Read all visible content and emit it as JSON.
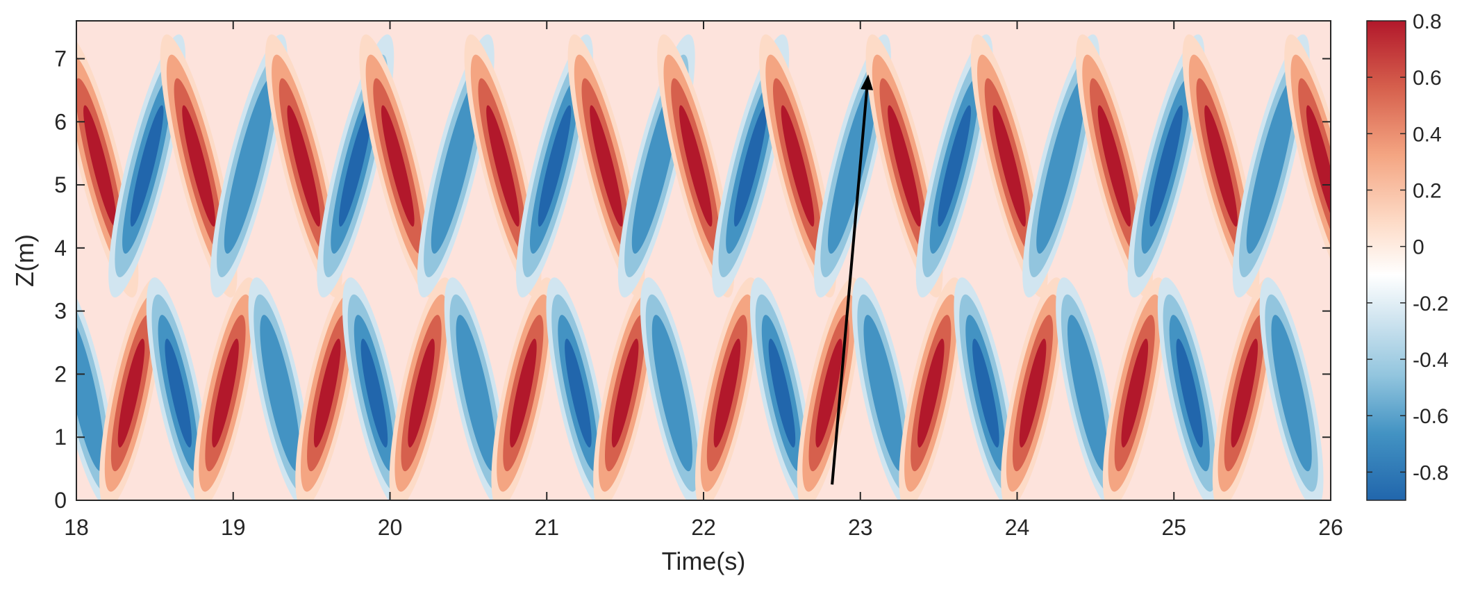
{
  "chart_data": {
    "type": "heatmap",
    "title": "",
    "xlabel": "Time(s)",
    "ylabel": "Z(m)",
    "xlim": [
      18,
      26
    ],
    "ylim": [
      0,
      7.6
    ],
    "x_ticks": [
      18,
      19,
      20,
      21,
      22,
      23,
      24,
      25,
      26
    ],
    "x_tick_labels": [
      "18",
      "19",
      "20",
      "21",
      "22",
      "23",
      "24",
      "25",
      "26"
    ],
    "y_ticks": [
      0,
      1,
      2,
      3,
      4,
      5,
      6,
      7
    ],
    "y_tick_labels": [
      "0",
      "1",
      "2",
      "3",
      "4",
      "5",
      "6",
      "7"
    ],
    "colorbar": {
      "range": [
        -0.9,
        0.8
      ],
      "ticks": [
        0.8,
        0.6,
        0.4,
        0.2,
        0,
        -0.2,
        -0.4,
        -0.6,
        -0.8
      ],
      "tick_labels": [
        "0.8",
        "0.6",
        "0.4",
        "0.2",
        "0",
        "-0.2",
        "-0.4",
        "-0.6",
        "-0.8"
      ],
      "colormap": [
        "#2166ac",
        "#4393c3",
        "#92c5de",
        "#d1e5f0",
        "#ffffff",
        "#fddbc7",
        "#f4a582",
        "#d6604d",
        "#b2182b"
      ]
    },
    "field_description": "contour field of alternating positive and negative bands tilted in time-height",
    "upper_band_centers_s": [
      18.15,
      18.45,
      18.78,
      19.1,
      19.45,
      19.78,
      20.05,
      20.42,
      20.72,
      21.05,
      21.38,
      21.7,
      21.95,
      22.3,
      22.6,
      22.95,
      23.28,
      23.6,
      23.95,
      24.28,
      24.62,
      24.95,
      25.3,
      25.62,
      25.95
    ],
    "lower_band_centers_s": [
      18.05,
      18.35,
      18.65,
      18.95,
      19.3,
      19.6,
      19.9,
      20.2,
      20.55,
      20.85,
      21.2,
      21.5,
      21.8,
      22.15,
      22.5,
      22.8,
      23.15,
      23.45,
      23.8,
      24.1,
      24.45,
      24.75,
      25.1,
      25.45,
      25.75
    ],
    "grid": false,
    "annotations": [
      {
        "type": "arrow",
        "from": [
          22.82,
          0.25
        ],
        "to": [
          23.05,
          6.75
        ],
        "color": "#000000"
      }
    ]
  }
}
